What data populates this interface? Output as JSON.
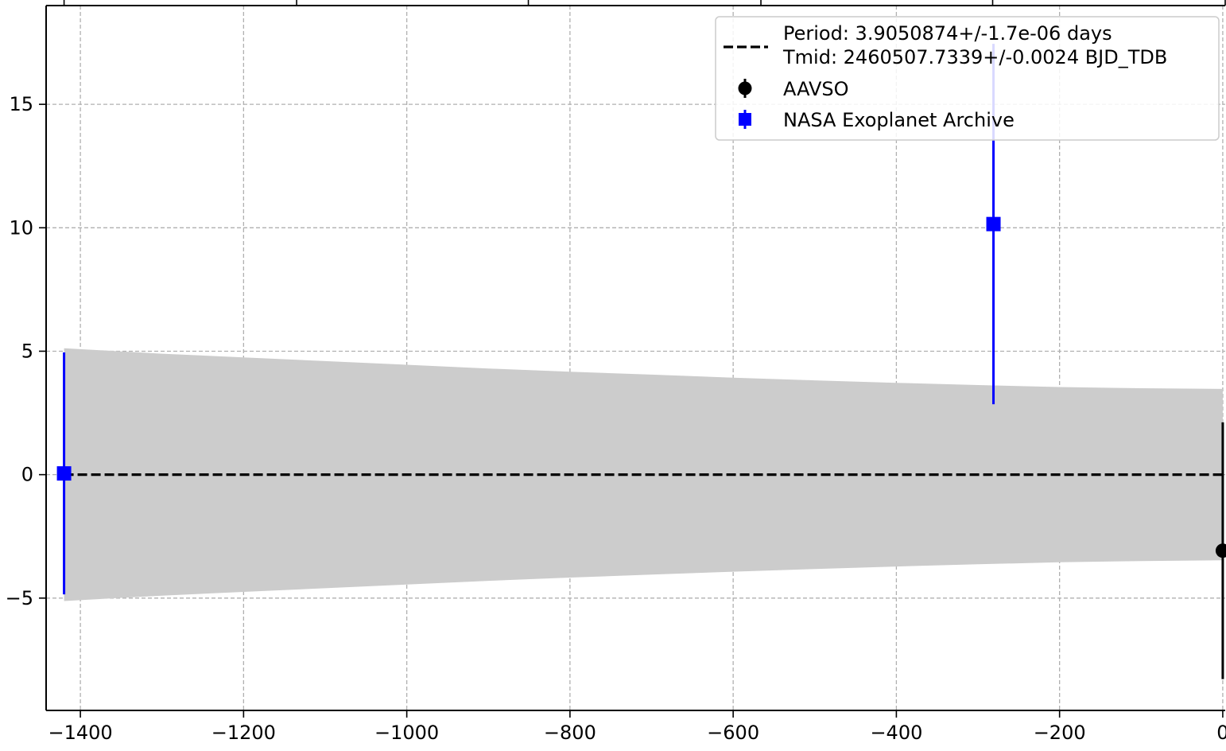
{
  "chart_data": {
    "type": "scatter",
    "title": "",
    "xlabel": "",
    "ylabel": "",
    "xlim": [
      -1442,
      3
    ],
    "ylim": [
      -9.55,
      19.0
    ],
    "grid": true,
    "x_ticks": [
      -1400,
      -1200,
      -1000,
      -800,
      -600,
      -400,
      -200,
      0
    ],
    "x_tick_labels": [
      "−1400",
      "−1200",
      "−1000",
      "−800",
      "−600",
      "−400",
      "−200",
      "0"
    ],
    "y_ticks": [
      -5,
      0,
      5,
      10,
      15
    ],
    "y_tick_labels": [
      "−5",
      "0",
      "5",
      "10",
      "15"
    ],
    "top_ticks": [
      -1420,
      -1135,
      -851,
      -566,
      -282,
      3
    ],
    "legend_position": "upper right",
    "fit_line": {
      "label_line1": "Period: 3.9050874+/-1.7e-06 days",
      "label_line2": "Tmid: 2460507.7339+/-0.0024 BJD_TDB",
      "x": [
        -1420,
        0
      ],
      "y": [
        0,
        0
      ],
      "color": "#000000",
      "style": "dashed"
    },
    "uncertainty_band": {
      "color": "#cccccc",
      "x": [
        -1420,
        -1300,
        -1200,
        -1100,
        -1000,
        -900,
        -800,
        -700,
        -600,
        -500,
        -400,
        -300,
        -200,
        -100,
        0
      ],
      "upper": [
        5.12,
        4.9,
        4.75,
        4.6,
        4.45,
        4.3,
        4.17,
        4.05,
        3.93,
        3.82,
        3.72,
        3.63,
        3.55,
        3.5,
        3.47
      ],
      "lower": [
        -5.12,
        -4.9,
        -4.75,
        -4.6,
        -4.45,
        -4.3,
        -4.17,
        -4.05,
        -3.93,
        -3.82,
        -3.72,
        -3.63,
        -3.55,
        -3.5,
        -3.47
      ]
    },
    "series": [
      {
        "name": "AAVSO",
        "marker": "circle",
        "color": "#000000",
        "points": [
          {
            "x": 0,
            "y": -3.08,
            "yerr": 5.2
          }
        ]
      },
      {
        "name": "NASA Exoplanet Archive",
        "marker": "square",
        "color": "#0000ff",
        "points": [
          {
            "x": -1420,
            "y": 0.05,
            "yerr": 4.9
          },
          {
            "x": -281,
            "y": 10.15,
            "yerr": 7.3
          }
        ]
      }
    ]
  }
}
